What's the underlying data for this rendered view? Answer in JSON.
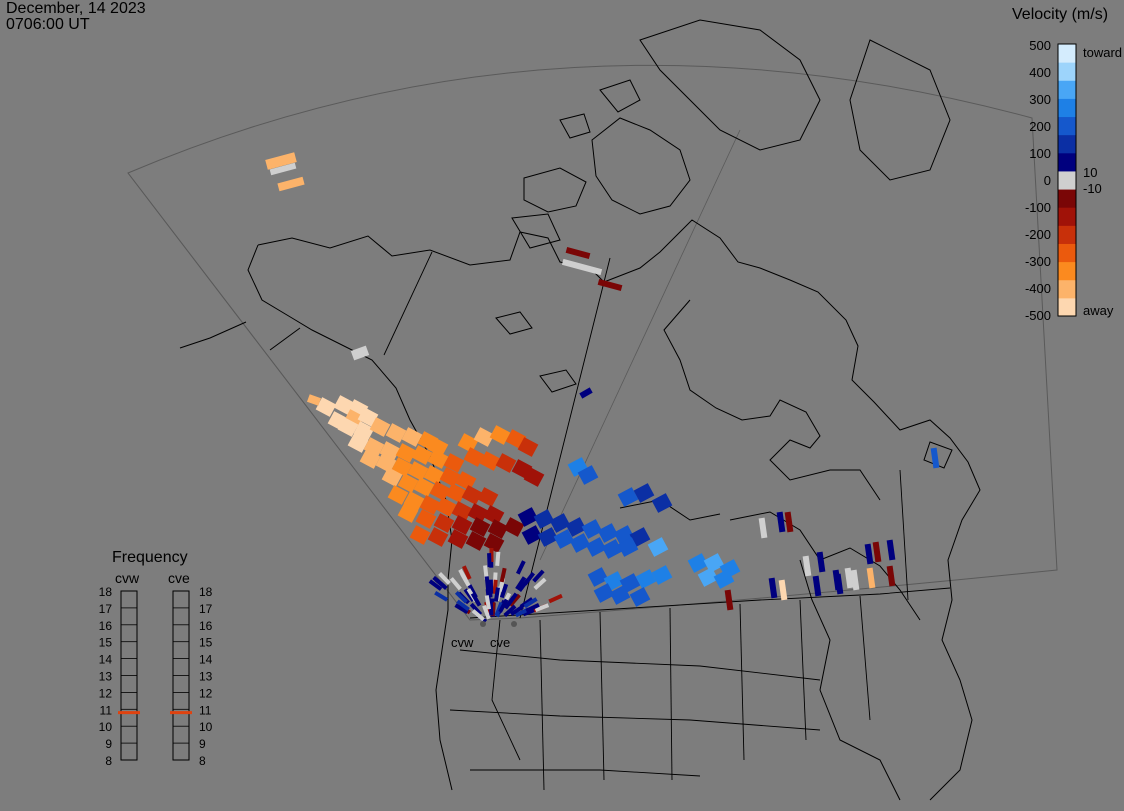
{
  "header": {
    "date": "December, 14 2023",
    "time": "0706:00 UT"
  },
  "legend": {
    "title": "Velocity (m/s)",
    "ticks": [
      "500",
      "400",
      "300",
      "200",
      "100",
      "0",
      "-100",
      "-200",
      "-300",
      "-400",
      "-500"
    ],
    "label_toward": "toward",
    "label_away": "away",
    "label_pos_threshold": "10",
    "label_neg_threshold": "-10",
    "colors": [
      "#fdd7b0",
      "#fcb36a",
      "#fb8a1f",
      "#eb5a0d",
      "#c8300a",
      "#a01208",
      "#7a0606",
      "#cfcfcf",
      "#00007e",
      "#0b2fa4",
      "#1558cc",
      "#1e80e6",
      "#49a6f5",
      "#9dd4fb",
      "#d4ecfd"
    ]
  },
  "frequency": {
    "title": "Frequency",
    "left_radar": "cvw",
    "right_radar": "cve",
    "scale": [
      "18",
      "17",
      "16",
      "15",
      "14",
      "13",
      "12",
      "11",
      "10",
      "9",
      "8"
    ],
    "left_value_mhz": 10.8,
    "right_value_mhz": 10.8,
    "marker_color": "#e0420f"
  },
  "map": {
    "radar_labels": [
      "cvw",
      "cve"
    ]
  }
}
